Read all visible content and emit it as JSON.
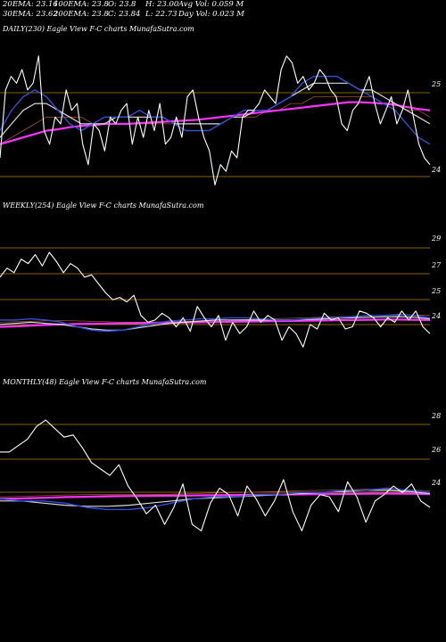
{
  "header": {
    "ema20": "20EMA: 23.16",
    "ema100": "100EMA: 23.8",
    "open": "O: 23.8",
    "high": "H: 23.00",
    "avg_vol": "Avg Vol: 0.059 M",
    "ema30": "30EMA: 23.62",
    "ema200": "200EMA: 23.8",
    "close": "C: 23.84",
    "low": "L: 22.73",
    "day_vol": "Day Vol: 0.023 M"
  },
  "colors": {
    "background": "#000000",
    "price": "#ffffff",
    "ema_fast": "#2f4fd8",
    "ema_slow": "#d9d9d9",
    "ema_long": "#ff33ff",
    "ma_brown": "#a0522d",
    "level_line": "#b8860b"
  },
  "chart_data": [
    {
      "type": "line",
      "panel_label": "DAILY(230) Eagle View F-C charts MunafaSutra.com",
      "y_ticks": [
        "25",
        "24"
      ],
      "series": [
        {
          "color": "price",
          "values": [
            23.8,
            24.8,
            25.0,
            24.9,
            25.1,
            24.8,
            24.9,
            25.3,
            24.2,
            24.0,
            24.4,
            24.3,
            24.8,
            24.5,
            24.6,
            24.0,
            23.7,
            24.3,
            24.2,
            23.9,
            24.4,
            24.3,
            24.5,
            24.6,
            24.0,
            24.4,
            24.1,
            24.5,
            24.2,
            24.6,
            24.0,
            24.1,
            24.4,
            24.1,
            24.7,
            24.8,
            24.4,
            24.1,
            23.9,
            23.4,
            23.7,
            23.6,
            23.9,
            23.8,
            24.4,
            24.5,
            24.5,
            24.6,
            24.8,
            24.7,
            24.6,
            25.1,
            25.3,
            25.2,
            24.9,
            25.0,
            24.8,
            24.9,
            25.1,
            25.0,
            24.8,
            24.7,
            24.3,
            24.2,
            24.5,
            24.6,
            24.8,
            25.0,
            24.6,
            24.3,
            24.5,
            24.7,
            24.3,
            24.5,
            24.8,
            24.4,
            24.0,
            23.8,
            23.7
          ]
        },
        {
          "color": "ema_fast",
          "values": [
            24.2,
            24.5,
            24.7,
            24.8,
            24.7,
            24.5,
            24.3,
            24.2,
            24.3,
            24.4,
            24.4,
            24.4,
            24.5,
            24.4,
            24.4,
            24.3,
            24.2,
            24.2,
            24.2,
            24.3,
            24.4,
            24.5,
            24.5,
            24.5,
            24.6,
            24.7,
            24.9,
            25.0,
            25.0,
            25.0,
            24.9,
            24.8,
            24.7,
            24.6,
            24.5,
            24.3,
            24.1,
            24.0
          ]
        },
        {
          "color": "ema_slow",
          "values": [
            24.1,
            24.3,
            24.5,
            24.6,
            24.6,
            24.5,
            24.4,
            24.3,
            24.3,
            24.3,
            24.4,
            24.4,
            24.4,
            24.4,
            24.4,
            24.3,
            24.3,
            24.3,
            24.3,
            24.3,
            24.4,
            24.4,
            24.5,
            24.5,
            24.6,
            24.7,
            24.8,
            24.9,
            24.9,
            24.9,
            24.9,
            24.8,
            24.8,
            24.7,
            24.6,
            24.5,
            24.4,
            24.3
          ]
        },
        {
          "color": "ma_brown",
          "values": [
            24.0,
            24.1,
            24.2,
            24.3,
            24.4,
            24.4,
            24.4,
            24.4,
            24.3,
            24.3,
            24.3,
            24.3,
            24.3,
            24.3,
            24.3,
            24.3,
            24.3,
            24.3,
            24.3,
            24.3,
            24.4,
            24.4,
            24.4,
            24.5,
            24.5,
            24.6,
            24.6,
            24.7,
            24.7,
            24.7,
            24.7,
            24.7,
            24.7,
            24.6,
            24.6,
            24.5,
            24.5,
            24.4
          ]
        },
        {
          "color": "ema_long",
          "values": [
            24.0,
            24.05,
            24.1,
            24.15,
            24.2,
            24.22,
            24.25,
            24.27,
            24.28,
            24.3,
            24.3,
            24.3,
            24.31,
            24.32,
            24.33,
            24.34,
            24.35,
            24.36,
            24.38,
            24.4,
            24.42,
            24.44,
            24.46,
            24.48,
            24.5,
            24.52,
            24.54,
            24.56,
            24.58,
            24.6,
            24.62,
            24.62,
            24.61,
            24.6,
            24.58,
            24.55,
            24.52,
            24.5
          ]
        }
      ]
    },
    {
      "type": "line",
      "panel_label": "WEEKLY(254) Eagle View F-C charts MunafaSutra.com",
      "y_ticks": [
        "29",
        "27",
        "25",
        "24"
      ],
      "series": [
        {
          "color": "price",
          "values": [
            26.8,
            27.2,
            27.0,
            27.6,
            27.4,
            27.8,
            27.3,
            27.9,
            27.5,
            27.0,
            27.4,
            27.2,
            26.8,
            26.9,
            26.5,
            26.1,
            25.8,
            25.9,
            25.7,
            26.0,
            25.1,
            24.8,
            24.9,
            25.2,
            25.0,
            24.6,
            25.0,
            24.4,
            25.5,
            25.0,
            24.6,
            25.1,
            24.0,
            24.8,
            24.3,
            24.6,
            25.3,
            24.8,
            25.1,
            24.9,
            24.0,
            24.6,
            24.3,
            23.7,
            24.7,
            24.5,
            25.2,
            24.9,
            25.0,
            24.5,
            24.6,
            25.3,
            25.2,
            25.0,
            24.6,
            25.0,
            24.8,
            25.3,
            24.9,
            25.3,
            24.6,
            24.3
          ]
        },
        {
          "color": "ema_fast",
          "values": [
            24.9,
            24.9,
            24.95,
            24.9,
            24.8,
            24.6,
            24.45,
            24.4,
            24.45,
            24.6,
            24.75,
            24.85,
            24.9,
            24.95,
            24.95,
            25.0,
            25.0,
            24.95,
            24.9,
            24.9,
            24.95,
            25.0,
            25.0,
            25.05,
            25.1,
            25.1,
            25.15,
            25.1,
            25.0
          ]
        },
        {
          "color": "ema_slow",
          "values": [
            24.7,
            24.75,
            24.8,
            24.75,
            24.7,
            24.6,
            24.5,
            24.45,
            24.45,
            24.55,
            24.65,
            24.75,
            24.8,
            24.85,
            24.9,
            24.9,
            24.9,
            24.9,
            24.9,
            24.9,
            24.92,
            24.95,
            24.98,
            25.0,
            25.02,
            25.04,
            25.05,
            25.02,
            24.95
          ]
        },
        {
          "color": "ma_brown",
          "values": [
            24.8,
            24.82,
            24.84,
            24.86,
            24.87,
            24.86,
            24.84,
            24.82,
            24.8,
            24.8,
            24.81,
            24.82,
            24.84,
            24.86,
            24.88,
            24.9,
            24.92,
            24.94,
            24.96,
            24.98,
            25.0,
            25.02,
            25.04,
            25.06,
            25.08,
            25.1,
            25.12,
            25.12,
            25.1
          ]
        },
        {
          "color": "ema_long",
          "values": [
            24.6,
            24.62,
            24.65,
            24.68,
            24.7,
            24.72,
            24.73,
            24.74,
            24.75,
            24.76,
            24.77,
            24.78,
            24.79,
            24.8,
            24.81,
            24.82,
            24.83,
            24.84,
            24.85,
            24.86,
            24.87,
            24.88,
            24.89,
            24.9,
            24.91,
            24.92,
            24.92,
            24.91,
            24.9
          ]
        }
      ]
    },
    {
      "type": "line",
      "panel_label": "MONTHLY(48) Eagle View F-C charts MunafaSutra.com",
      "y_ticks": [
        "28",
        "26",
        "24"
      ],
      "series": [
        {
          "color": "price",
          "values": [
            25.8,
            25.8,
            26.1,
            26.4,
            27.0,
            27.3,
            26.9,
            26.5,
            26.6,
            26.0,
            25.3,
            25.0,
            24.7,
            25.2,
            24.2,
            23.6,
            22.9,
            23.3,
            22.4,
            23.2,
            24.3,
            22.4,
            22.1,
            23.4,
            24.1,
            23.8,
            22.8,
            24.2,
            23.6,
            22.8,
            23.5,
            24.5,
            23.0,
            22.1,
            23.3,
            23.8,
            23.7,
            23.0,
            24.4,
            23.7,
            22.5,
            23.5,
            23.8,
            24.2,
            23.9,
            24.3,
            23.5,
            23.2
          ]
        },
        {
          "color": "ema_fast",
          "values": [
            23.6,
            23.5,
            23.5,
            23.4,
            23.2,
            23.1,
            23.1,
            23.2,
            23.4,
            23.6,
            23.7,
            23.7,
            23.8,
            23.8,
            23.9,
            23.9,
            24.0,
            24.0,
            24.1,
            24.0,
            23.9
          ]
        },
        {
          "color": "ema_slow",
          "values": [
            23.5,
            23.5,
            23.4,
            23.3,
            23.25,
            23.25,
            23.3,
            23.4,
            23.5,
            23.6,
            23.65,
            23.7,
            23.75,
            23.8,
            23.85,
            23.9,
            23.95,
            24.0,
            24.0,
            23.95,
            23.85
          ]
        },
        {
          "color": "ma_brown",
          "values": [
            23.7,
            23.72,
            23.75,
            23.78,
            23.8,
            23.8,
            23.8,
            23.8,
            23.82,
            23.85,
            23.88,
            23.9,
            23.92,
            23.95,
            23.98,
            24.0,
            24.02,
            24.05,
            24.05,
            24.02,
            23.98
          ]
        },
        {
          "color": "ema_long",
          "values": [
            23.6,
            23.62,
            23.65,
            23.68,
            23.7,
            23.72,
            23.73,
            23.74,
            23.75,
            23.76,
            23.77,
            23.78,
            23.79,
            23.8,
            23.81,
            23.82,
            23.83,
            23.84,
            23.85,
            23.84,
            23.82
          ]
        }
      ]
    }
  ]
}
